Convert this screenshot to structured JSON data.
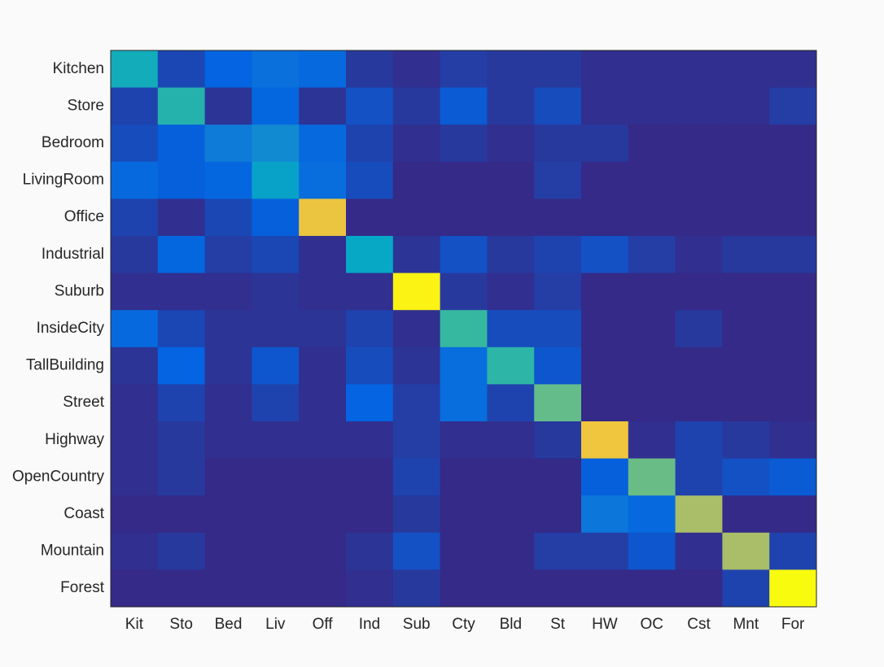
{
  "chart_data": {
    "type": "heatmap",
    "colormap": "parula",
    "categories": [
      "Kit",
      "Sto",
      "Bed",
      "Liv",
      "Off",
      "Ind",
      "Sub",
      "Cty",
      "Bld",
      "St",
      "HW",
      "OC",
      "Cst",
      "Mnt",
      "For"
    ],
    "y_categories": [
      "Kitchen",
      "Store",
      "Bedroom",
      "LivingRoom",
      "Office",
      "Industrial",
      "Suburb",
      "InsideCity",
      "TallBuilding",
      "Street",
      "Highway",
      "OpenCountry",
      "Coast",
      "Mountain",
      "Forest"
    ],
    "values": [
      [
        0.38,
        0.06,
        0.12,
        0.16,
        0.14,
        0.03,
        0.01,
        0.04,
        0.03,
        0.03,
        0.01,
        0.01,
        0.01,
        0.01,
        0.01
      ],
      [
        0.05,
        0.42,
        0.02,
        0.13,
        0.02,
        0.08,
        0.03,
        0.1,
        0.03,
        0.07,
        0.01,
        0.01,
        0.01,
        0.01,
        0.04
      ],
      [
        0.07,
        0.11,
        0.2,
        0.25,
        0.14,
        0.05,
        0.01,
        0.03,
        0.01,
        0.03,
        0.03,
        0,
        0,
        0,
        0
      ],
      [
        0.14,
        0.11,
        0.13,
        0.33,
        0.15,
        0.07,
        0,
        0,
        0,
        0.04,
        0,
        0,
        0,
        0,
        0
      ],
      [
        0.05,
        0.01,
        0.06,
        0.11,
        0.76,
        0,
        0,
        0,
        0,
        0,
        0,
        0,
        0,
        0,
        0
      ],
      [
        0.03,
        0.13,
        0.04,
        0.06,
        0.01,
        0.35,
        0.02,
        0.08,
        0.03,
        0.05,
        0.08,
        0.04,
        0.01,
        0.03,
        0.03
      ],
      [
        0.01,
        0.01,
        0.01,
        0.02,
        0.01,
        0.01,
        0.91,
        0.03,
        0.01,
        0.04,
        0,
        0,
        0,
        0,
        0
      ],
      [
        0.14,
        0.06,
        0.02,
        0.02,
        0.02,
        0.05,
        0.01,
        0.46,
        0.07,
        0.07,
        0,
        0,
        0.03,
        0,
        0
      ],
      [
        0.02,
        0.12,
        0.02,
        0.09,
        0.01,
        0.07,
        0.02,
        0.15,
        0.44,
        0.09,
        0,
        0,
        0,
        0,
        0
      ],
      [
        0.01,
        0.05,
        0.01,
        0.05,
        0.01,
        0.12,
        0.04,
        0.15,
        0.05,
        0.52,
        0,
        0,
        0,
        0,
        0
      ],
      [
        0.01,
        0.03,
        0.01,
        0.01,
        0.01,
        0.01,
        0.04,
        0.01,
        0.01,
        0.03,
        0.77,
        0.01,
        0.05,
        0.03,
        0.01
      ],
      [
        0.01,
        0.03,
        0,
        0,
        0,
        0,
        0.05,
        0,
        0,
        0,
        0.11,
        0.53,
        0.05,
        0.08,
        0.1
      ],
      [
        0,
        0,
        0,
        0,
        0,
        0,
        0.03,
        0,
        0,
        0,
        0.18,
        0.14,
        0.62,
        0,
        0
      ],
      [
        0.01,
        0.03,
        0,
        0,
        0,
        0.02,
        0.08,
        0,
        0,
        0.04,
        0.04,
        0.09,
        0.01,
        0.62,
        0.05
      ],
      [
        0,
        0,
        0,
        0,
        0,
        0.01,
        0.03,
        0,
        0,
        0,
        0,
        0,
        0,
        0.05,
        0.93
      ]
    ]
  }
}
